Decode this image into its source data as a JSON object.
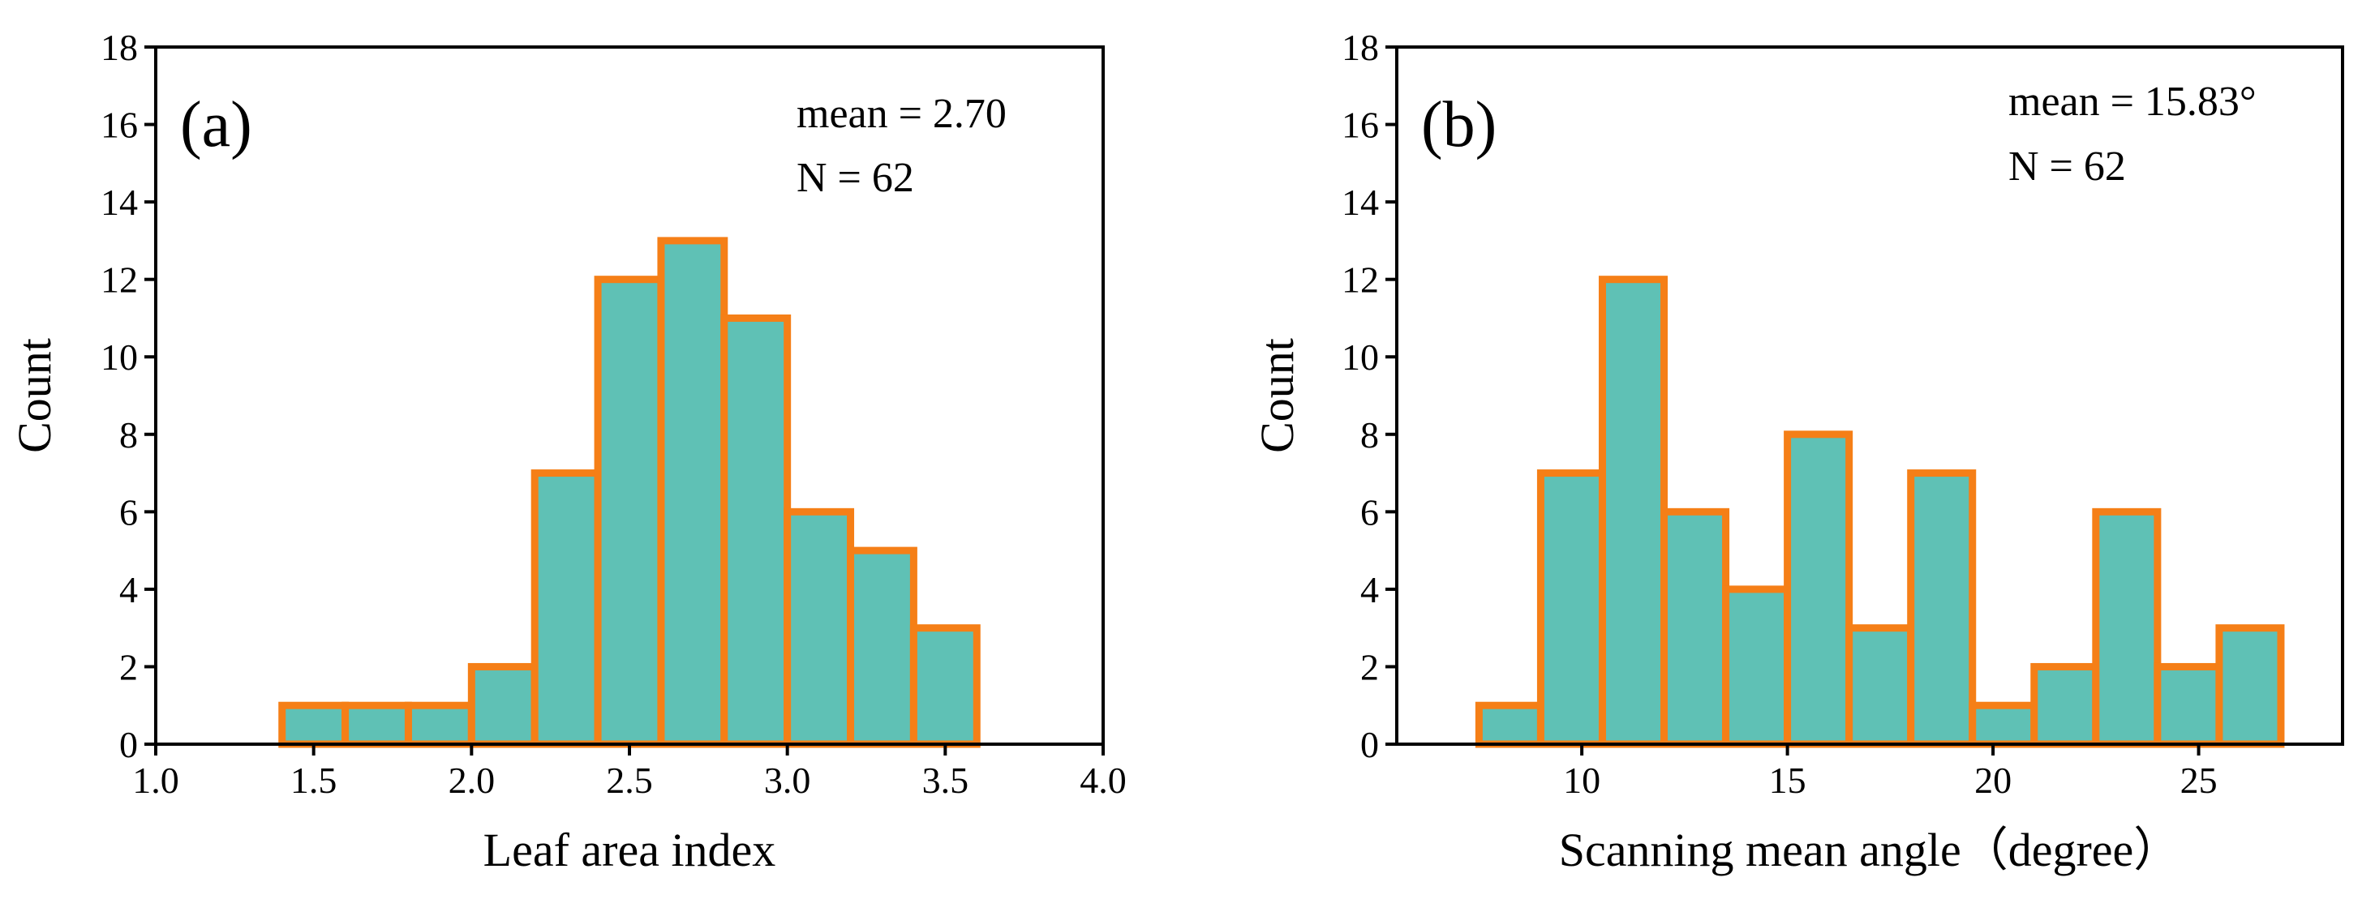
{
  "chart_data": [
    {
      "type": "bar",
      "panel_label": "(a)",
      "title": "",
      "xlabel": "Leaf area index",
      "ylabel": "Count",
      "xlim": [
        1.0,
        4.0
      ],
      "ylim": [
        0,
        18
      ],
      "xticks": [
        1.0,
        1.5,
        2.0,
        2.5,
        3.0,
        3.5,
        4.0
      ],
      "xtick_labels": [
        "1.0",
        "1.5",
        "2.0",
        "2.5",
        "3.0",
        "3.5",
        "4.0"
      ],
      "yticks": [
        0,
        2,
        4,
        6,
        8,
        10,
        12,
        14,
        16,
        18
      ],
      "ytick_labels": [
        "0",
        "2",
        "4",
        "6",
        "8",
        "10",
        "12",
        "14",
        "16",
        "18"
      ],
      "bins": [
        {
          "start": 1.4,
          "end": 1.6,
          "count": 1
        },
        {
          "start": 1.6,
          "end": 1.8,
          "count": 1
        },
        {
          "start": 1.8,
          "end": 2.0,
          "count": 1
        },
        {
          "start": 2.0,
          "end": 2.2,
          "count": 2
        },
        {
          "start": 2.2,
          "end": 2.4,
          "count": 7
        },
        {
          "start": 2.4,
          "end": 2.6,
          "count": 12
        },
        {
          "start": 2.6,
          "end": 2.8,
          "count": 13
        },
        {
          "start": 2.8,
          "end": 3.0,
          "count": 11
        },
        {
          "start": 3.0,
          "end": 3.2,
          "count": 6
        },
        {
          "start": 3.2,
          "end": 3.4,
          "count": 5
        },
        {
          "start": 3.4,
          "end": 3.6,
          "count": 3
        }
      ],
      "annotations": [
        "mean = 2.70",
        "N = 62"
      ],
      "annotation_placement": "top-right",
      "colors": {
        "fill": "#5fc1b5",
        "edge": "#f57f17"
      }
    },
    {
      "type": "bar",
      "panel_label": "(b)",
      "title": "",
      "xlabel": "Scanning mean angle（degree）",
      "ylabel": "Count",
      "xlim": [
        5.5,
        28.5
      ],
      "ylim": [
        0,
        18
      ],
      "xticks": [
        10,
        15,
        20,
        25
      ],
      "xtick_labels": [
        "10",
        "15",
        "20",
        "25"
      ],
      "yticks": [
        0,
        2,
        4,
        6,
        8,
        10,
        12,
        14,
        16,
        18
      ],
      "ytick_labels": [
        "0",
        "2",
        "4",
        "6",
        "8",
        "10",
        "12",
        "14",
        "16",
        "18"
      ],
      "bins": [
        {
          "start": 7.5,
          "end": 9.0,
          "count": 1
        },
        {
          "start": 9.0,
          "end": 10.5,
          "count": 7
        },
        {
          "start": 10.5,
          "end": 12.0,
          "count": 12
        },
        {
          "start": 12.0,
          "end": 13.5,
          "count": 6
        },
        {
          "start": 13.5,
          "end": 15.0,
          "count": 4
        },
        {
          "start": 15.0,
          "end": 16.5,
          "count": 8
        },
        {
          "start": 16.5,
          "end": 18.0,
          "count": 3
        },
        {
          "start": 18.0,
          "end": 19.5,
          "count": 7
        },
        {
          "start": 19.5,
          "end": 21.0,
          "count": 1
        },
        {
          "start": 21.0,
          "end": 22.5,
          "count": 2
        },
        {
          "start": 22.5,
          "end": 24.0,
          "count": 6
        },
        {
          "start": 24.0,
          "end": 25.5,
          "count": 2
        },
        {
          "start": 25.5,
          "end": 27.0,
          "count": 3
        }
      ],
      "annotations": [
        "mean = 15.83°",
        "N = 62"
      ],
      "annotation_placement": "top-right",
      "colors": {
        "fill": "#5fc1b5",
        "edge": "#f57f17"
      }
    }
  ]
}
